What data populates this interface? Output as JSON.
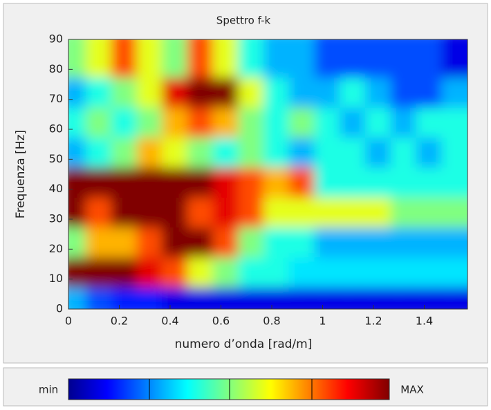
{
  "chart_data": {
    "type": "heatmap",
    "title": "Spettro f-k",
    "x_label": "numero d’onda [rad/m]",
    "y_label": "Frequenza [Hz]",
    "x": [
      0.05,
      0.15,
      0.25,
      0.35,
      0.45,
      0.55,
      0.65,
      0.75,
      0.85,
      0.95,
      1.05,
      1.15,
      1.25,
      1.35,
      1.45,
      1.55
    ],
    "y": [
      5,
      15,
      25,
      35,
      45,
      55,
      65,
      75,
      85
    ],
    "z": [
      [
        0.3,
        0.2,
        0.15,
        0.15,
        0.1,
        0.1,
        0.1,
        0.1,
        0.1,
        0.1,
        0.1,
        0.1,
        0.1,
        0.1,
        0.1,
        0.1
      ],
      [
        1,
        1,
        1,
        0.9,
        0.8,
        0.6,
        0.5,
        0.4,
        0.4,
        0.35,
        0.35,
        0.35,
        0.35,
        0.35,
        0.35,
        0.35
      ],
      [
        0.5,
        0.7,
        0.7,
        0.8,
        1,
        1,
        0.8,
        0.5,
        0.4,
        0.4,
        0.3,
        0.3,
        0.3,
        0.3,
        0.3,
        0.3
      ],
      [
        1,
        0.8,
        1,
        1,
        1,
        0.8,
        0.9,
        0.8,
        0.6,
        0.6,
        0.6,
        0.6,
        0.6,
        0.5,
        0.5,
        0.5
      ],
      [
        1,
        1,
        1,
        1,
        1,
        1,
        0.9,
        0.8,
        0.7,
        0.8,
        0.4,
        0.4,
        0.4,
        0.4,
        0.4,
        0.4
      ],
      [
        0.3,
        0.4,
        0.5,
        0.7,
        0.6,
        0.5,
        0.4,
        0.5,
        0.4,
        0.3,
        0.4,
        0.4,
        0.3,
        0.4,
        0.3,
        0.4
      ],
      [
        0.4,
        0.5,
        0.4,
        0.5,
        0.7,
        0.8,
        0.7,
        0.5,
        0.4,
        0.5,
        0.4,
        0.3,
        0.4,
        0.3,
        0.4,
        0.4
      ],
      [
        0.3,
        0.4,
        0.5,
        0.6,
        0.9,
        1,
        1,
        0.6,
        0.4,
        0.3,
        0.3,
        0.4,
        0.3,
        0.2,
        0.2,
        0.3
      ],
      [
        0.5,
        0.6,
        0.8,
        0.6,
        0.5,
        0.8,
        0.6,
        0.4,
        0.3,
        0.3,
        0.2,
        0.2,
        0.2,
        0.2,
        0.2,
        0.1
      ]
    ],
    "zlim": [
      0,
      1
    ],
    "xlim": [
      0,
      1.57
    ],
    "xticks": [
      0,
      0.2,
      0.4,
      0.6,
      0.8,
      1,
      1.2,
      1.4
    ],
    "ylim": [
      0,
      90
    ],
    "yticks": [
      0,
      10,
      20,
      30,
      40,
      50,
      60,
      70,
      80,
      90
    ],
    "colormap": "jet",
    "colorbar": {
      "min_label": "min",
      "max_label": "MAX"
    }
  }
}
